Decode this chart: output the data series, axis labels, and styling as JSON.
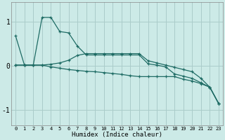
{
  "x": [
    0,
    1,
    2,
    3,
    4,
    5,
    6,
    7,
    8,
    9,
    10,
    11,
    12,
    13,
    14,
    15,
    16,
    17,
    18,
    19,
    20,
    21,
    22,
    23
  ],
  "line1": [
    0.68,
    0.02,
    0.02,
    1.1,
    1.1,
    0.78,
    0.75,
    0.45,
    0.25,
    0.25,
    0.25,
    0.25,
    0.25,
    0.25,
    0.25,
    0.05,
    0.02,
    -0.02,
    -0.18,
    -0.23,
    -0.28,
    -0.38,
    -0.48,
    -0.85
  ],
  "line2": [
    0.02,
    0.02,
    0.02,
    0.02,
    0.04,
    0.07,
    0.13,
    0.24,
    0.28,
    0.28,
    0.28,
    0.28,
    0.28,
    0.28,
    0.28,
    0.12,
    0.07,
    0.02,
    -0.03,
    -0.08,
    -0.13,
    -0.28,
    -0.48,
    -0.85
  ],
  "line3": [
    0.02,
    0.02,
    0.02,
    0.02,
    -0.02,
    -0.05,
    -0.08,
    -0.1,
    -0.12,
    -0.13,
    -0.15,
    -0.17,
    -0.19,
    -0.22,
    -0.24,
    -0.24,
    -0.24,
    -0.24,
    -0.24,
    -0.3,
    -0.34,
    -0.4,
    -0.48,
    -0.85
  ],
  "bg_color": "#cceae7",
  "grid_color": "#aaccca",
  "line_color": "#1e6b64",
  "xlabel": "Humidex (Indice chaleur)",
  "xlim": [
    -0.5,
    23.5
  ],
  "ylim": [
    -1.35,
    1.45
  ],
  "yticks": [
    -1,
    0,
    1
  ],
  "xtick_labels": [
    "0",
    "1",
    "2",
    "3",
    "4",
    "5",
    "6",
    "7",
    "8",
    "9",
    "10",
    "11",
    "12",
    "13",
    "14",
    "15",
    "16",
    "17",
    "18",
    "19",
    "20",
    "21",
    "22",
    "23"
  ]
}
